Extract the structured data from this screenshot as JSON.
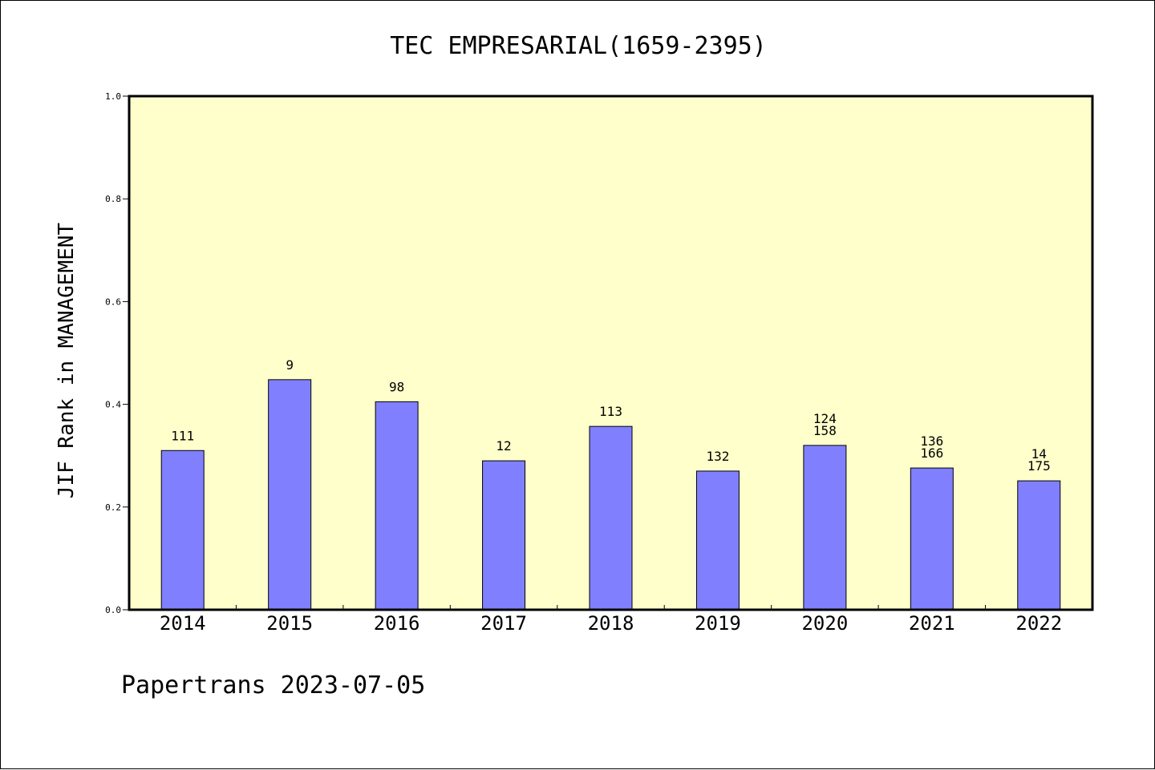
{
  "chart_data": {
    "type": "bar",
    "title": "TEC EMPRESARIAL(1659-2395)",
    "xlabel": "",
    "ylabel": "JIF Rank in MANAGEMENT",
    "ylim": [
      0,
      1.0
    ],
    "yticks": [
      "0.0",
      "0.2",
      "0.4",
      "0.6",
      "0.8",
      "1.0"
    ],
    "categories": [
      "2014",
      "2015",
      "2016",
      "2017",
      "2018",
      "2019",
      "2020",
      "2021",
      "2022"
    ],
    "values": [
      0.31,
      0.448,
      0.405,
      0.29,
      0.357,
      0.27,
      0.32,
      0.276,
      0.251
    ],
    "bar_labels": [
      [
        "111"
      ],
      [
        "9"
      ],
      [
        "98"
      ],
      [
        "12"
      ],
      [
        "113"
      ],
      [
        "132"
      ],
      [
        "124",
        "158"
      ],
      [
        "136",
        "166"
      ],
      [
        "14",
        "175"
      ]
    ],
    "grid": false,
    "colors": {
      "plot_background": "#ffffcc",
      "bar_fill": "#8080ff",
      "bar_stroke": "#000000"
    }
  },
  "footer": {
    "text": "Papertrans 2023-07-05"
  }
}
